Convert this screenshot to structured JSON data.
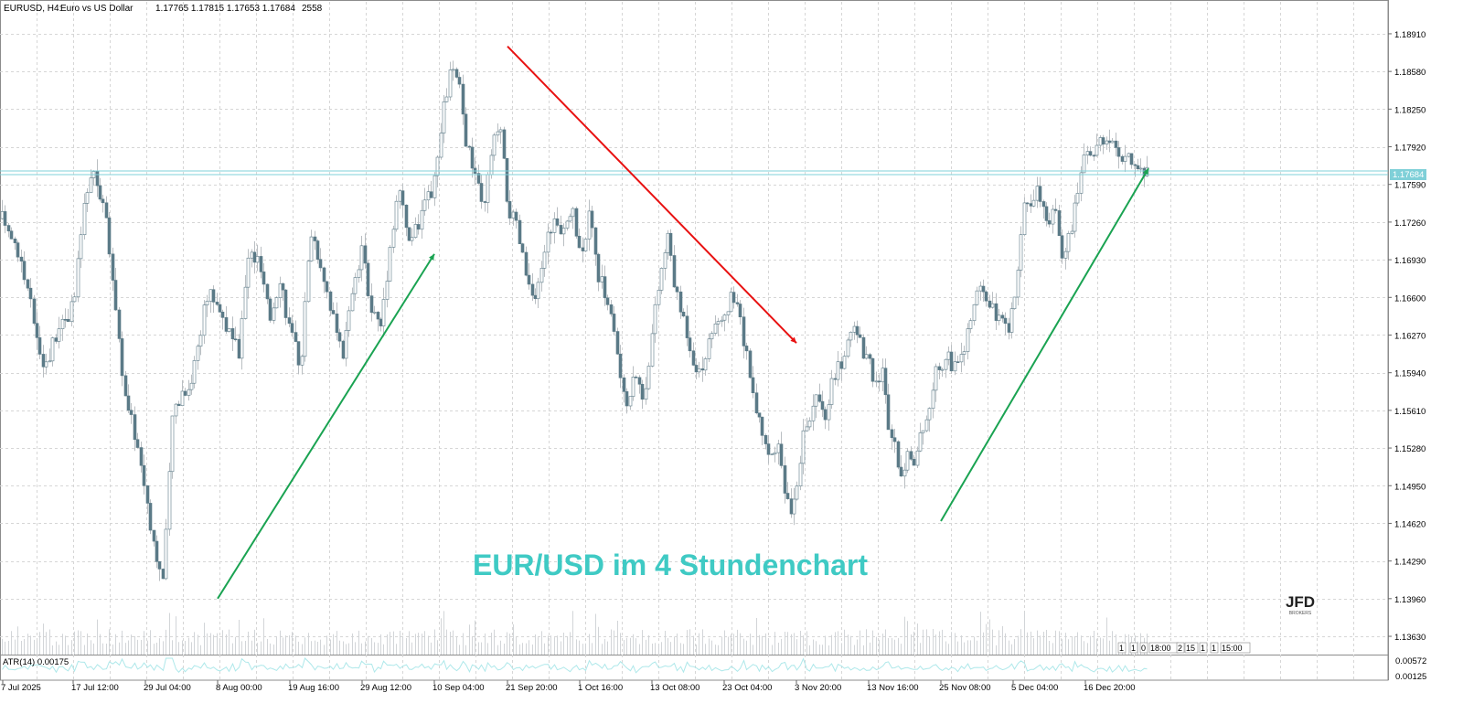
{
  "header": {
    "symbol": "EURUSD, H4:",
    "description": "Euro vs US Dollar",
    "ohlc": "1.17765 1.17815 1.17653 1.17684",
    "bars": "2558"
  },
  "watermark": "EUR/USD im 4 Stundenchart",
  "logo": {
    "text": "JFD",
    "subtext": "BROKERS"
  },
  "indicator": {
    "label": "ATR(14) 0.00175",
    "ticks": [
      "0.00572",
      "0.00125"
    ]
  },
  "current_price": "1.17684",
  "overlapped_time_labels": [
    "1",
    "1",
    "0",
    "18:00",
    "2",
    "15",
    "1",
    "1",
    "15:00"
  ],
  "colors": {
    "up_candle": "#ffffff",
    "down_candle": "#5b7a87",
    "wick": "#b9bec2",
    "volume": "#d2d5d8",
    "grid": "#d6d6d6",
    "atr_line": "#aee8ea",
    "price_line": "#7fd0d8",
    "watermark": "#3fcac4",
    "trend_up": "#1aa352",
    "trend_down": "#e81111"
  },
  "chart_data": {
    "type": "candlestick",
    "symbol": "EURUSD",
    "timeframe": "H4",
    "y_ticks": [
      "1.18910",
      "1.18580",
      "1.18250",
      "1.17920",
      "1.17590",
      "1.17260",
      "1.16930",
      "1.16600",
      "1.16270",
      "1.15940",
      "1.15610",
      "1.15280",
      "1.14950",
      "1.14620",
      "1.14290",
      "1.13960",
      "1.13630"
    ],
    "ylim": [
      1.1347,
      1.1919
    ],
    "x_ticks": [
      "7 Jul 2025",
      "17 Jul 12:00",
      "29 Jul 04:00",
      "8 Aug 00:00",
      "19 Aug 16:00",
      "29 Aug 12:00",
      "10 Sep 04:00",
      "21 Sep 20:00",
      "1 Oct 16:00",
      "13 Oct 08:00",
      "23 Oct 04:00",
      "3 Nov 20:00",
      "13 Nov 16:00",
      "25 Nov 08:00",
      "5 Dec 04:00",
      "16 Dec 20:00"
    ],
    "close_path": [
      [
        "7 Jul 2025",
        1.1729
      ],
      [
        "10 Jul",
        1.1705
      ],
      [
        "14 Jul",
        1.165
      ],
      [
        "15 Jul",
        1.1598
      ],
      [
        "16 Jul",
        1.164
      ],
      [
        "17 Jul 12:00",
        1.165
      ],
      [
        "20 Jul",
        1.174
      ],
      [
        "22 Jul",
        1.177
      ],
      [
        "24 Jul",
        1.1738
      ],
      [
        "25 Jul",
        1.166
      ],
      [
        "27 Jul",
        1.157
      ],
      [
        "28 Jul",
        1.154
      ],
      [
        "29 Jul 04:00",
        1.149
      ],
      [
        "30 Jul",
        1.144
      ],
      [
        "31 Jul",
        1.141
      ],
      [
        "1 Aug",
        1.156
      ],
      [
        "3 Aug",
        1.1578
      ],
      [
        "5 Aug",
        1.1585
      ],
      [
        "6 Aug",
        1.163
      ],
      [
        "7 Aug",
        1.1665
      ],
      [
        "8 Aug 00:00",
        1.1655
      ],
      [
        "10 Aug",
        1.163
      ],
      [
        "11 Aug",
        1.161
      ],
      [
        "13 Aug",
        1.17
      ],
      [
        "15 Aug",
        1.169
      ],
      [
        "16 Aug",
        1.164
      ],
      [
        "18 Aug",
        1.168
      ],
      [
        "19 Aug 16:00",
        1.163
      ],
      [
        "21 Aug",
        1.16
      ],
      [
        "22 Aug",
        1.172
      ],
      [
        "24 Aug",
        1.169
      ],
      [
        "26 Aug",
        1.165
      ],
      [
        "27 Aug",
        1.1605
      ],
      [
        "28 Aug",
        1.166
      ],
      [
        "29 Aug 12:00",
        1.17
      ],
      [
        "31 Aug",
        1.165
      ],
      [
        "2 Sep",
        1.1635
      ],
      [
        "3 Sep",
        1.17
      ],
      [
        "5 Sep",
        1.176
      ],
      [
        "6 Sep",
        1.171
      ],
      [
        "8 Sep",
        1.172
      ],
      [
        "9 Sep",
        1.174
      ],
      [
        "10 Sep 04:00",
        1.176
      ],
      [
        "11 Sep",
        1.182
      ],
      [
        "12 Sep",
        1.186
      ],
      [
        "14 Sep",
        1.1845
      ],
      [
        "15 Sep",
        1.179
      ],
      [
        "16 Sep",
        1.177
      ],
      [
        "18 Sep",
        1.173
      ],
      [
        "19 Sep",
        1.179
      ],
      [
        "20 Sep",
        1.181
      ],
      [
        "21 Sep 20:00",
        1.174
      ],
      [
        "22 Sep",
        1.172
      ],
      [
        "23 Sep",
        1.168
      ],
      [
        "24 Sep",
        1.165
      ],
      [
        "25 Sep",
        1.17
      ],
      [
        "26 Sep",
        1.173
      ],
      [
        "28 Sep",
        1.171
      ],
      [
        "30 Sep",
        1.174
      ],
      [
        "1 Oct 16:00",
        1.17
      ],
      [
        "2 Oct",
        1.173
      ],
      [
        "3 Oct",
        1.168
      ],
      [
        "5 Oct",
        1.166
      ],
      [
        "7 Oct",
        1.162
      ],
      [
        "9 Oct",
        1.156
      ],
      [
        "11 Oct",
        1.16
      ],
      [
        "12 Oct",
        1.157
      ],
      [
        "13 Oct 08:00",
        1.163
      ],
      [
        "14 Oct",
        1.168
      ],
      [
        "15 Oct",
        1.1715
      ],
      [
        "16 Oct",
        1.166
      ],
      [
        "17 Oct",
        1.164
      ],
      [
        "19 Oct",
        1.161
      ],
      [
        "20 Oct",
        1.159
      ],
      [
        "21 Oct",
        1.1625
      ],
      [
        "22 Oct",
        1.163
      ],
      [
        "23 Oct 04:00",
        1.164
      ],
      [
        "24 Oct",
        1.166
      ],
      [
        "25 Oct",
        1.165
      ],
      [
        "26 Oct",
        1.162
      ],
      [
        "27 Oct",
        1.158
      ],
      [
        "28 Oct",
        1.156
      ],
      [
        "29 Oct",
        1.154
      ],
      [
        "30 Oct",
        1.152
      ],
      [
        "31 Oct",
        1.153
      ],
      [
        "1 Nov",
        1.1495
      ],
      [
        "2 Nov",
        1.1475
      ],
      [
        "3 Nov 20:00",
        1.15
      ],
      [
        "4 Nov",
        1.154
      ],
      [
        "5 Nov",
        1.156
      ],
      [
        "6 Nov",
        1.1575
      ],
      [
        "7 Nov",
        1.156
      ],
      [
        "8 Nov",
        1.159
      ],
      [
        "9 Nov",
        1.16
      ],
      [
        "10 Nov",
        1.162
      ],
      [
        "11 Nov",
        1.164
      ],
      [
        "12 Nov",
        1.1615
      ],
      [
        "13 Nov 16:00",
        1.16
      ],
      [
        "14 Nov",
        1.159
      ],
      [
        "15 Nov",
        1.1595
      ],
      [
        "16 Nov",
        1.155
      ],
      [
        "17 Nov",
        1.1525
      ],
      [
        "18 Nov",
        1.151
      ],
      [
        "19 Nov",
        1.152
      ],
      [
        "20 Nov",
        1.1515
      ],
      [
        "21 Nov",
        1.154
      ],
      [
        "22 Nov",
        1.156
      ],
      [
        "23 Nov",
        1.159
      ],
      [
        "25 Nov 08:00",
        1.16
      ],
      [
        "26 Nov",
        1.161
      ],
      [
        "27 Nov",
        1.1595
      ],
      [
        "28 Nov",
        1.161
      ],
      [
        "29 Nov",
        1.164
      ],
      [
        "30 Nov",
        1.1665
      ],
      [
        "1 Dec",
        1.166
      ],
      [
        "2 Dec",
        1.165
      ],
      [
        "3 Dec",
        1.164
      ],
      [
        "4 Dec",
        1.163
      ],
      [
        "5 Dec 04:00",
        1.165
      ],
      [
        "6 Dec",
        1.17
      ],
      [
        "7 Dec",
        1.1745
      ],
      [
        "8 Dec",
        1.174
      ],
      [
        "9 Dec",
        1.176
      ],
      [
        "10 Dec",
        1.1735
      ],
      [
        "11 Dec",
        1.172
      ],
      [
        "12 Dec",
        1.174
      ],
      [
        "13 Dec",
        1.17
      ],
      [
        "14 Dec",
        1.171
      ],
      [
        "15 Dec",
        1.173
      ],
      [
        "16 Dec",
        1.177
      ],
      [
        "16 Dec 20:00",
        1.179
      ],
      [
        "17 Dec",
        1.1795
      ],
      [
        "18 Dec",
        1.178
      ],
      [
        "19 Dec",
        1.1768
      ]
    ],
    "trendlines": [
      {
        "color": "red",
        "from": [
          "21 Sep 20:00",
          1.188
        ],
        "to": [
          "3 Nov 20:00",
          1.162
        ]
      },
      {
        "color": "green",
        "from": [
          "8 Aug 00:00",
          1.1396
        ],
        "to": [
          "10 Sep 04:00",
          1.1698
        ]
      },
      {
        "color": "green",
        "from": [
          "25 Nov 08:00",
          1.1464
        ],
        "to": [
          "19 Dec",
          1.1773
        ]
      }
    ],
    "grid": true,
    "last_price": 1.17684
  }
}
